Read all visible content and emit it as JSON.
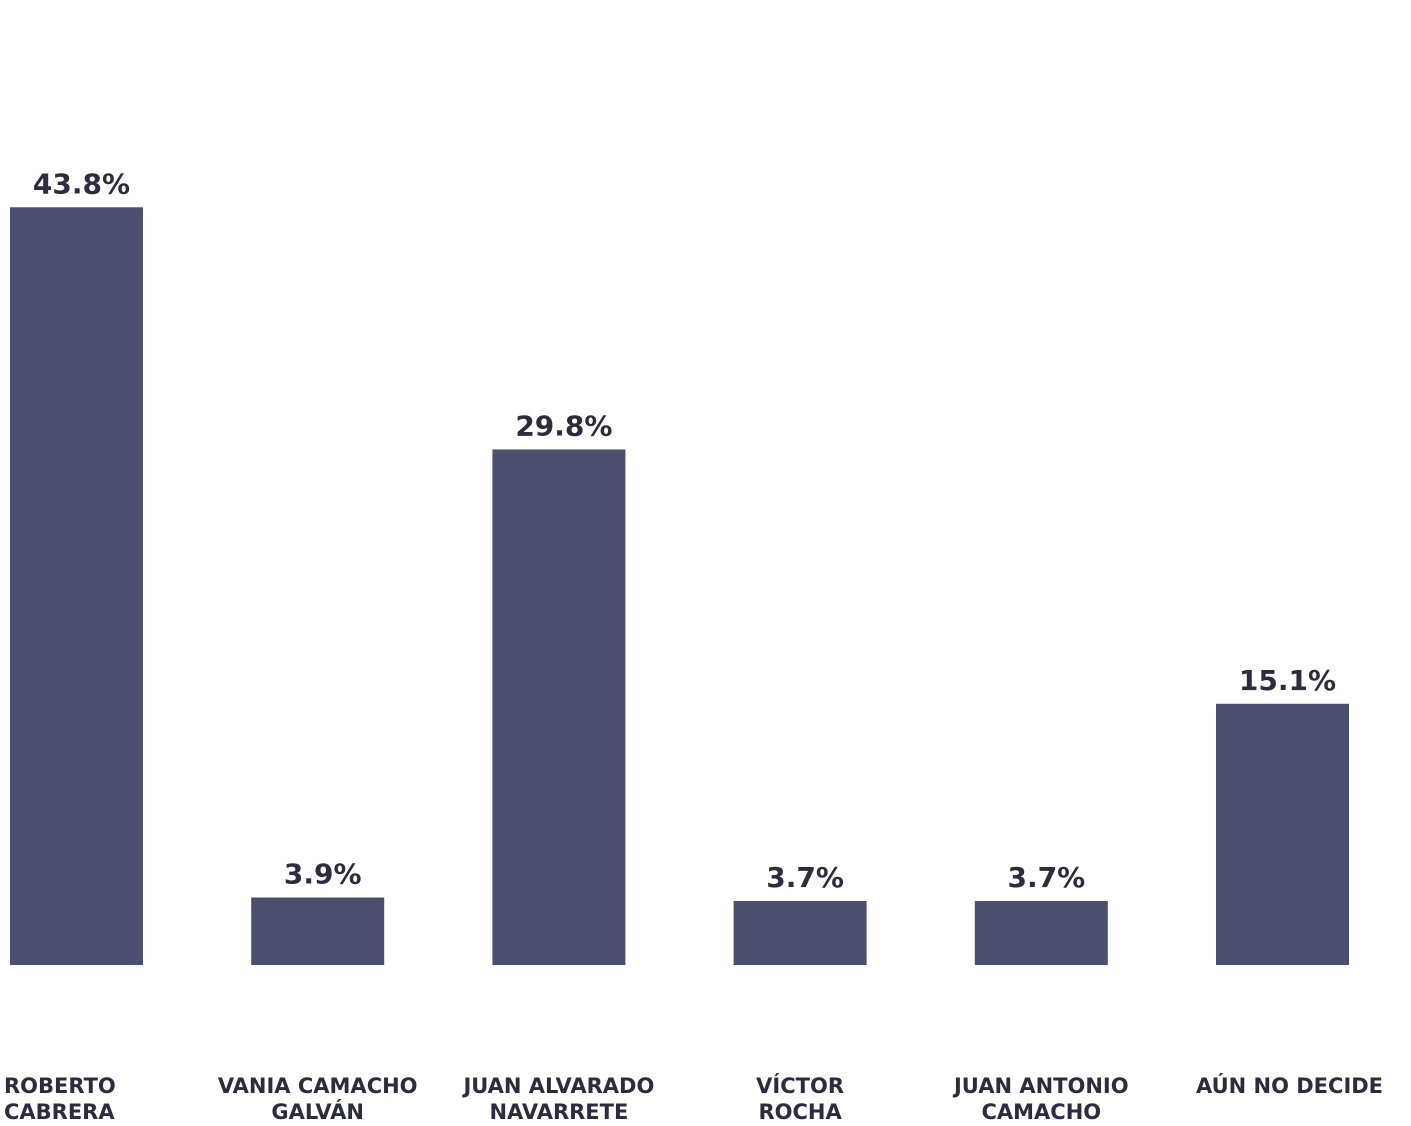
{
  "chart_data": {
    "type": "bar",
    "categories": [
      "ROBERTO CABRERA",
      "VANIA CAMACHO GALVÁN",
      "JUAN ALVARADO NAVARRETE",
      "VÍCTOR ROCHA",
      "JUAN ANTONIO CAMACHO",
      "AÚN NO DECIDE"
    ],
    "values": [
      43.8,
      3.9,
      29.8,
      3.7,
      3.7,
      15.1
    ],
    "value_labels": [
      "43.8%",
      "3.9%",
      "29.8%",
      "3.7%",
      "3.7%",
      "15.1%"
    ],
    "color": "#4b5070"
  }
}
